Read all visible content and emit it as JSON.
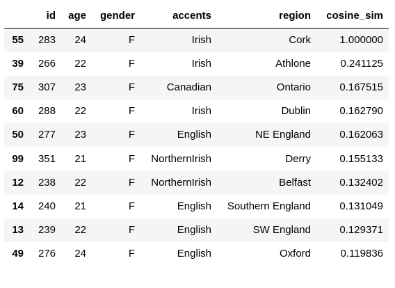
{
  "table": {
    "columns": [
      "",
      "id",
      "age",
      "gender",
      "accents",
      "region",
      "cosine_sim"
    ],
    "rows": [
      {
        "index": "55",
        "id": "283",
        "age": "24",
        "gender": "F",
        "accents": "Irish",
        "region": "Cork",
        "cosine_sim": "1.000000"
      },
      {
        "index": "39",
        "id": "266",
        "age": "22",
        "gender": "F",
        "accents": "Irish",
        "region": "Athlone",
        "cosine_sim": "0.241125"
      },
      {
        "index": "75",
        "id": "307",
        "age": "23",
        "gender": "F",
        "accents": "Canadian",
        "region": "Ontario",
        "cosine_sim": "0.167515"
      },
      {
        "index": "60",
        "id": "288",
        "age": "22",
        "gender": "F",
        "accents": "Irish",
        "region": "Dublin",
        "cosine_sim": "0.162790"
      },
      {
        "index": "50",
        "id": "277",
        "age": "23",
        "gender": "F",
        "accents": "English",
        "region": "NE England",
        "cosine_sim": "0.162063"
      },
      {
        "index": "99",
        "id": "351",
        "age": "21",
        "gender": "F",
        "accents": "NorthernIrish",
        "region": "Derry",
        "cosine_sim": "0.155133"
      },
      {
        "index": "12",
        "id": "238",
        "age": "22",
        "gender": "F",
        "accents": "NorthernIrish",
        "region": "Belfast",
        "cosine_sim": "0.132402"
      },
      {
        "index": "14",
        "id": "240",
        "age": "21",
        "gender": "F",
        "accents": "English",
        "region": "Southern England",
        "cosine_sim": "0.131049"
      },
      {
        "index": "13",
        "id": "239",
        "age": "22",
        "gender": "F",
        "accents": "English",
        "region": "SW England",
        "cosine_sim": "0.129371"
      },
      {
        "index": "49",
        "id": "276",
        "age": "24",
        "gender": "F",
        "accents": "English",
        "region": "Oxford",
        "cosine_sim": "0.119836"
      }
    ]
  }
}
